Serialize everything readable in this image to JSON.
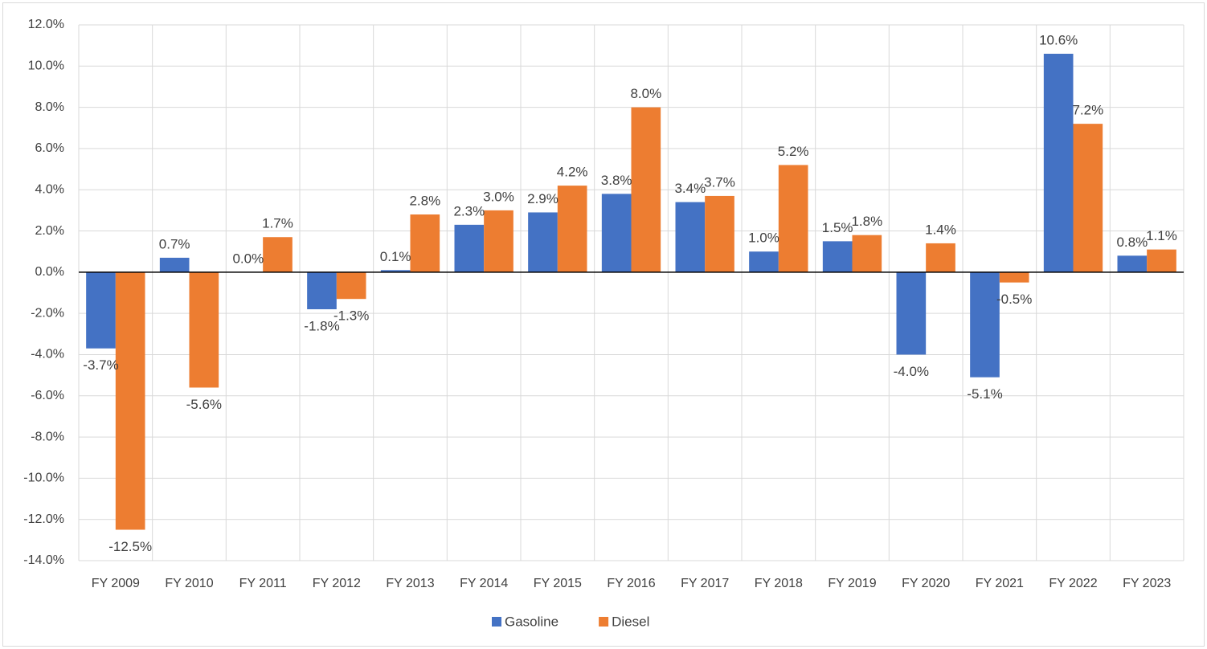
{
  "chart_data": {
    "type": "bar",
    "categories": [
      "FY 2009",
      "FY 2010",
      "FY 2011",
      "FY 2012",
      "FY 2013",
      "FY 2014",
      "FY 2015",
      "FY 2016",
      "FY 2017",
      "FY 2018",
      "FY 2019",
      "FY 2020",
      "FY 2021",
      "FY 2022",
      "FY 2023"
    ],
    "series": [
      {
        "name": "Gasoline",
        "color": "#4472c4",
        "values": [
          -3.7,
          0.7,
          0.0,
          -1.8,
          0.1,
          2.3,
          2.9,
          3.8,
          3.4,
          1.0,
          1.5,
          -4.0,
          -5.1,
          10.6,
          0.8
        ],
        "value_labels": [
          "-3.7%",
          "0.7%",
          "0.0%",
          "-1.8%",
          "0.1%",
          "2.3%",
          "2.9%",
          "3.8%",
          "3.4%",
          "1.0%",
          "1.5%",
          "-4.0%",
          "-5.1%",
          "10.6%",
          "0.8%"
        ]
      },
      {
        "name": "Diesel",
        "color": "#ed7d31",
        "values": [
          -12.5,
          -5.6,
          1.7,
          -1.3,
          2.8,
          3.0,
          4.2,
          8.0,
          3.7,
          5.2,
          1.8,
          1.4,
          -0.5,
          7.2,
          1.1
        ],
        "value_labels": [
          "-12.5%",
          "-5.6%",
          "1.7%",
          "-1.3%",
          "2.8%",
          "3.0%",
          "4.2%",
          "8.0%",
          "3.7%",
          "5.2%",
          "1.8%",
          "1.4%",
          "-0.5%",
          "7.2%",
          "1.1%"
        ]
      }
    ],
    "ylim": [
      -14,
      12
    ],
    "yticks": [
      {
        "value": -14,
        "label": "-14.0%"
      },
      {
        "value": -12,
        "label": "-12.0%"
      },
      {
        "value": -10,
        "label": "-10.0%"
      },
      {
        "value": -8,
        "label": "-8.0%"
      },
      {
        "value": -6,
        "label": "-6.0%"
      },
      {
        "value": -4,
        "label": "-4.0%"
      },
      {
        "value": -2,
        "label": "-2.0%"
      },
      {
        "value": 0,
        "label": "0.0%"
      },
      {
        "value": 2,
        "label": "2.0%"
      },
      {
        "value": 4,
        "label": "4.0%"
      },
      {
        "value": 6,
        "label": "6.0%"
      },
      {
        "value": 8,
        "label": "8.0%"
      },
      {
        "value": 10,
        "label": "10.0%"
      },
      {
        "value": 12,
        "label": "12.0%"
      }
    ],
    "grid": true,
    "legend": "bottom"
  }
}
